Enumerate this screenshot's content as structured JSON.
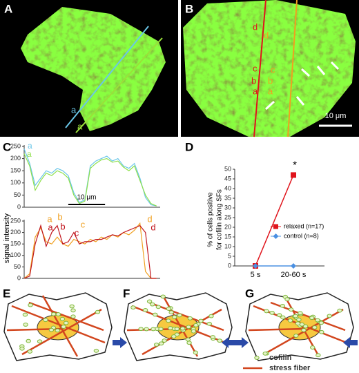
{
  "panel_labels": [
    "A",
    "B",
    "C",
    "D",
    "E",
    "F",
    "G"
  ],
  "image_a": {
    "line_labels": [
      {
        "text": "a",
        "color": "#6ac6e8"
      },
      {
        "text": "a",
        "color": "#9be03a"
      }
    ]
  },
  "image_b": {
    "line_labels": [
      {
        "text": "d",
        "color": "#e0141c"
      },
      {
        "text": "d",
        "color": "#f0a020"
      },
      {
        "text": "c",
        "color": "#e0141c"
      },
      {
        "text": "c",
        "color": "#f0a020"
      },
      {
        "text": "b",
        "color": "#e0141c"
      },
      {
        "text": "b",
        "color": "#f0a020"
      },
      {
        "text": "a",
        "color": "#e0141c"
      },
      {
        "text": "a",
        "color": "#f0a020"
      }
    ],
    "scale_bar": "10 μm"
  },
  "chart_data": [
    {
      "type": "line",
      "x": [
        0,
        1.5,
        3,
        4.5,
        6,
        7.5,
        9,
        10.5,
        12,
        13.5,
        15,
        16.5,
        18,
        19.5,
        21,
        22.5,
        24,
        25.5,
        27,
        28.5,
        30,
        31.5,
        33,
        34.5,
        36
      ],
      "xlim": [
        0,
        37
      ],
      "ylim": [
        0,
        250
      ],
      "yticks": [
        0,
        50,
        100,
        150,
        200,
        250
      ],
      "series": [
        {
          "name": "a",
          "color": "#6ac6e8",
          "values": [
            240,
            180,
            90,
            120,
            150,
            140,
            160,
            150,
            130,
            60,
            20,
            30,
            170,
            190,
            200,
            210,
            190,
            200,
            170,
            160,
            180,
            120,
            40,
            10,
            5
          ]
        },
        {
          "name": "a",
          "color": "#8ee04a",
          "values": [
            220,
            170,
            70,
            110,
            140,
            130,
            150,
            140,
            120,
            50,
            15,
            25,
            160,
            180,
            195,
            200,
            185,
            190,
            165,
            150,
            170,
            110,
            50,
            15,
            5
          ]
        }
      ],
      "scale_bar": {
        "length": 10,
        "label": "10 μm"
      }
    },
    {
      "type": "line",
      "x": [
        0,
        1.5,
        3,
        4.5,
        6,
        7.5,
        9,
        10.5,
        12,
        13.5,
        15,
        16.5,
        18,
        19.5,
        21,
        22.5,
        24,
        25.5,
        27,
        28.5,
        30,
        31.5,
        33,
        34.5,
        36
      ],
      "xlim": [
        0,
        37
      ],
      "ylim": [
        0,
        250
      ],
      "yticks": [
        0,
        50,
        100,
        150,
        200,
        250
      ],
      "ylabel": "signal intensity",
      "series": [
        {
          "color": "#f0a020",
          "values": [
            0,
            20,
            180,
            220,
            160,
            150,
            180,
            150,
            140,
            170,
            160,
            150,
            170,
            160,
            180,
            170,
            190,
            180,
            200,
            190,
            210,
            240,
            30,
            0,
            0
          ]
        },
        {
          "color": "#c0141c",
          "values": [
            0,
            10,
            150,
            230,
            140,
            200,
            230,
            150,
            160,
            200,
            150,
            160,
            160,
            170,
            170,
            180,
            190,
            185,
            200,
            210,
            220,
            230,
            200,
            0,
            0
          ]
        }
      ],
      "annotations": [
        {
          "text": "a",
          "color": "#f0a020"
        },
        {
          "text": "a",
          "color": "#c0141c"
        },
        {
          "text": "b",
          "color": "#f0a020"
        },
        {
          "text": "b",
          "color": "#c0141c"
        },
        {
          "text": "c",
          "color": "#f0a020"
        },
        {
          "text": "c",
          "color": "#c0141c"
        },
        {
          "text": "d",
          "color": "#f0a020"
        },
        {
          "text": "d",
          "color": "#c0141c"
        }
      ]
    },
    {
      "type": "line",
      "categories": [
        "5 s",
        "20-60 s"
      ],
      "ylim": [
        0,
        50
      ],
      "yticks": [
        0,
        5,
        10,
        15,
        20,
        25,
        30,
        35,
        40,
        45,
        50
      ],
      "ylabel": [
        "% of cells positive",
        "for cofilin along SFs"
      ],
      "series": [
        {
          "name": "relaxed (n=17)",
          "color": "#e0141c",
          "marker": "square",
          "values": [
            0,
            47
          ]
        },
        {
          "name": "control (n=8)",
          "color": "#4a90e2",
          "marker": "diamond",
          "values": [
            0,
            0
          ]
        }
      ],
      "annotation": "*"
    }
  ],
  "diagram_legend": [
    "cofilin",
    "stress fiber"
  ]
}
